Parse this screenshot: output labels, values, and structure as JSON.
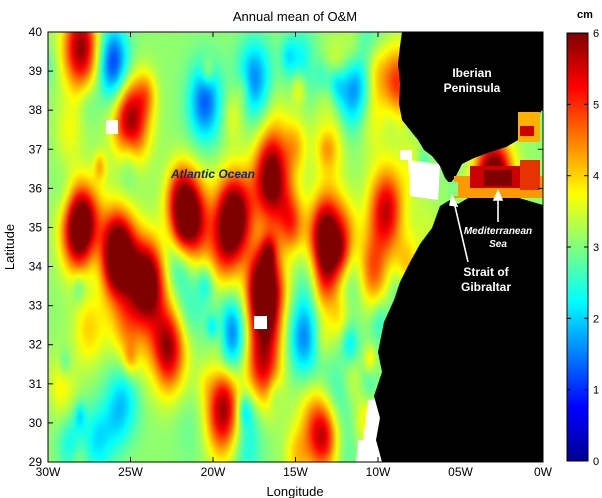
{
  "chart_data": {
    "type": "heatmap",
    "title": "Annual mean of O&M",
    "xlabel": "Longitude",
    "ylabel": "Latitude",
    "x_ticks": [
      "30W",
      "25W",
      "20W",
      "15W",
      "10W",
      "05W",
      "0W"
    ],
    "y_ticks": [
      "29",
      "30",
      "31",
      "32",
      "33",
      "34",
      "35",
      "36",
      "37",
      "38",
      "39",
      "40"
    ],
    "xlim": [
      -30,
      0
    ],
    "ylim": [
      29,
      40
    ],
    "colorbar": {
      "unit": "cm",
      "ticks": [
        "0",
        "1",
        "2",
        "3",
        "4",
        "5",
        "6"
      ],
      "range": [
        0,
        6
      ],
      "colormap": "jet"
    },
    "hotspots": [
      {
        "lon": -28.0,
        "lat": 35.0,
        "value": 6.0
      },
      {
        "lon": -25.8,
        "lat": 34.3,
        "value": 6.0
      },
      {
        "lon": -21.5,
        "lat": 35.2,
        "value": 5.8
      },
      {
        "lon": -18.8,
        "lat": 35.3,
        "value": 6.0
      },
      {
        "lon": -16.5,
        "lat": 36.2,
        "value": 5.2
      },
      {
        "lon": -13.0,
        "lat": 34.7,
        "value": 6.0
      },
      {
        "lon": -16.8,
        "lat": 33.2,
        "value": 5.8
      },
      {
        "lon": -24.0,
        "lat": 33.6,
        "value": 5.5
      },
      {
        "lon": -22.8,
        "lat": 31.9,
        "value": 5.0
      },
      {
        "lon": -19.5,
        "lat": 30.2,
        "value": 5.0
      },
      {
        "lon": -28.0,
        "lat": 39.6,
        "value": 5.0
      },
      {
        "lon": -25.0,
        "lat": 37.8,
        "value": 5.0
      },
      {
        "lon": -3.0,
        "lat": 36.1,
        "value": 6.0
      },
      {
        "lon": -9.5,
        "lat": 35.4,
        "value": 4.8
      },
      {
        "lon": -17.0,
        "lat": 31.5,
        "value": 4.6
      },
      {
        "lon": -13.5,
        "lat": 29.8,
        "value": 4.6
      }
    ],
    "lows": [
      {
        "lon": -26.0,
        "lat": 39.2,
        "value": 1.2
      },
      {
        "lon": -20.5,
        "lat": 38.2,
        "value": 1.6
      },
      {
        "lon": -17.5,
        "lat": 38.8,
        "value": 1.8
      },
      {
        "lon": -22.0,
        "lat": 34.2,
        "value": 2.0
      },
      {
        "lon": -19.0,
        "lat": 32.3,
        "value": 1.8
      },
      {
        "lon": -14.5,
        "lat": 32.2,
        "value": 1.8
      },
      {
        "lon": -25.5,
        "lat": 30.6,
        "value": 2.2
      },
      {
        "lon": -11.8,
        "lat": 38.5,
        "value": 1.8
      }
    ],
    "annotations": [
      "Atlantic Ocean",
      "Iberian Peninsula",
      "Mediterranean Sea",
      "Strait of Gibraltar"
    ]
  },
  "labels": {
    "atlantic": "Atlantic Ocean",
    "iberian_1": "Iberian",
    "iberian_2": "Peninsula",
    "med_1": "Mediterranean",
    "med_2": "Sea",
    "strait_1": "Strait of",
    "strait_2": "Gibraltar"
  },
  "colors": {
    "land": "#000000",
    "missing": "#ffffff"
  }
}
